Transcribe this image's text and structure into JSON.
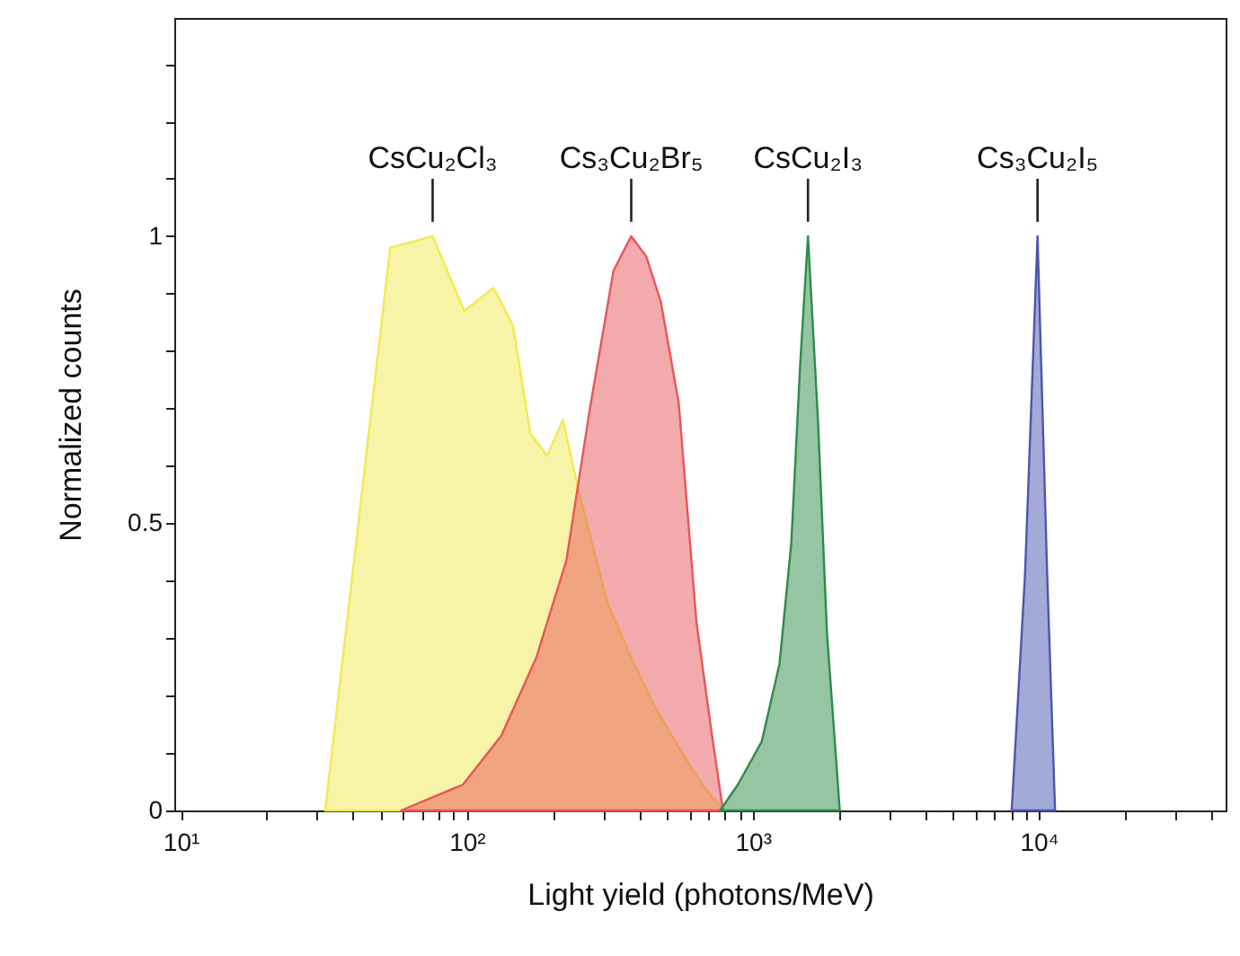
{
  "chart_data": {
    "type": "area",
    "xlabel": "Light yield (photons/MeV)",
    "ylabel": "Normalized counts",
    "log": "x",
    "grid": false,
    "xlim": [
      9.5,
      45000
    ],
    "ylim": [
      0,
      1.38
    ],
    "xticks": [
      {
        "value": 10,
        "label": "10¹"
      },
      {
        "value": 20,
        "label": null
      },
      {
        "value": 30,
        "label": null
      },
      {
        "value": 40,
        "label": null
      },
      {
        "value": 50,
        "label": null
      },
      {
        "value": 60,
        "label": null
      },
      {
        "value": 70,
        "label": null
      },
      {
        "value": 80,
        "label": null
      },
      {
        "value": 90,
        "label": null
      },
      {
        "value": 100,
        "label": "10²"
      },
      {
        "value": 200,
        "label": null
      },
      {
        "value": 300,
        "label": null
      },
      {
        "value": 400,
        "label": null
      },
      {
        "value": 500,
        "label": null
      },
      {
        "value": 600,
        "label": null
      },
      {
        "value": 700,
        "label": null
      },
      {
        "value": 800,
        "label": null
      },
      {
        "value": 900,
        "label": null
      },
      {
        "value": 1000,
        "label": "10³"
      },
      {
        "value": 2000,
        "label": null
      },
      {
        "value": 3000,
        "label": null
      },
      {
        "value": 4000,
        "label": null
      },
      {
        "value": 5000,
        "label": null
      },
      {
        "value": 6000,
        "label": null
      },
      {
        "value": 7000,
        "label": null
      },
      {
        "value": 8000,
        "label": null
      },
      {
        "value": 9000,
        "label": null
      },
      {
        "value": 10000,
        "label": "10⁴"
      },
      {
        "value": 20000,
        "label": null
      },
      {
        "value": 30000,
        "label": null
      },
      {
        "value": 40000,
        "label": null
      }
    ],
    "yticks": [
      0,
      {
        "value": 0.1,
        "label": null
      },
      {
        "value": 0.2,
        "label": null
      },
      {
        "value": 0.3,
        "label": null
      },
      {
        "value": 0.4,
        "label": null
      },
      0.5,
      {
        "value": 0.6,
        "label": null
      },
      {
        "value": 0.7,
        "label": null
      },
      {
        "value": 0.8,
        "label": null
      },
      {
        "value": 0.9,
        "label": null
      },
      1,
      {
        "value": 1.1,
        "label": null
      },
      {
        "value": 1.2,
        "label": null
      },
      {
        "value": 1.3,
        "label": null
      }
    ],
    "series": [
      {
        "name": "CsCu₂Cl₃",
        "color": "#f2ea50",
        "x": [
          32,
          54,
          76,
          98,
          124,
          145,
          167,
          191,
          217,
          245,
          311,
          376,
          455,
          551,
          667,
          787
        ],
        "values": [
          0,
          0.98,
          1.0,
          0.87,
          0.91,
          0.845,
          0.656,
          0.618,
          0.68,
          0.56,
          0.36,
          0.266,
          0.18,
          0.11,
          0.045,
          0
        ]
      },
      {
        "name": "Cs₃Cu₂Br₅",
        "color": "#e8555a",
        "x": [
          59,
          97,
          132,
          175,
          223,
          269,
          326,
          376,
          424,
          477,
          551,
          635,
          716,
          787
        ],
        "values": [
          0,
          0.045,
          0.13,
          0.266,
          0.435,
          0.697,
          0.94,
          1.0,
          0.965,
          0.886,
          0.71,
          0.33,
          0.14,
          0
        ]
      },
      {
        "name": "CsCu₂I₃",
        "color": "#2e8b4a",
        "x": [
          769,
          887,
          1075,
          1240,
          1364,
          1466,
          1560,
          1692,
          1817,
          2015
        ],
        "values": [
          0,
          0.045,
          0.12,
          0.255,
          0.466,
          0.78,
          1.0,
          0.676,
          0.31,
          0
        ]
      },
      {
        "name": "Cs₃Cu₂I₅",
        "color": "#4a55b0",
        "x": [
          8040,
          8950,
          9900,
          10700,
          11400
        ],
        "values": [
          0,
          0.41,
          1.0,
          0.41,
          0
        ]
      }
    ]
  }
}
